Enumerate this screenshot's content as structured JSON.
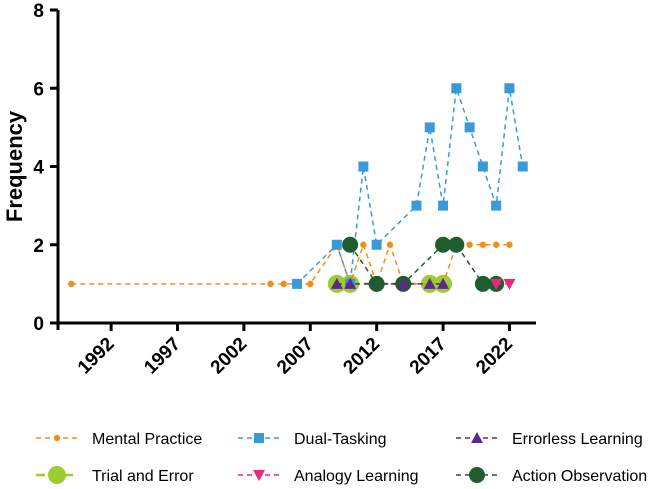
{
  "chart_data": {
    "type": "line",
    "title": "",
    "xlabel": "",
    "ylabel": "Frequency",
    "xlim": [
      1988,
      2024
    ],
    "ylim": [
      0,
      8
    ],
    "x_ticks": [
      1992,
      1997,
      2002,
      2007,
      2012,
      2017,
      2022
    ],
    "y_ticks": [
      0,
      2,
      4,
      6,
      8
    ],
    "grid": false,
    "legend_position": "bottom",
    "series": [
      {
        "name": "Mental Practice",
        "color": "#f28e1c",
        "marker": "small-circle",
        "x": [
          1989,
          2004,
          2005,
          2006,
          2007,
          2009,
          2010,
          2011,
          2012,
          2013,
          2014,
          2016,
          2017,
          2018,
          2019,
          2020,
          2021,
          2022
        ],
        "y": [
          1,
          1,
          1,
          1,
          1,
          2,
          1,
          2,
          1,
          2,
          1,
          1,
          1,
          2,
          2,
          2,
          2,
          2
        ]
      },
      {
        "name": "Dual-Tasking",
        "color": "#3a9ad9",
        "marker": "square",
        "x": [
          2006,
          2009,
          2010,
          2011,
          2012,
          2015,
          2016,
          2017,
          2018,
          2019,
          2020,
          2021,
          2022,
          2023
        ],
        "y": [
          1,
          2,
          1,
          4,
          2,
          3,
          5,
          3,
          6,
          5,
          4,
          3,
          6,
          4
        ]
      },
      {
        "name": "Errorless Learning",
        "color": "#5b2a86",
        "marker": "triangle-up",
        "x": [
          2009,
          2010,
          2014,
          2016,
          2017
        ],
        "y": [
          1,
          1,
          1,
          1,
          1
        ]
      },
      {
        "name": "Trial and Error",
        "color": "#9acd32",
        "marker": "large-circle",
        "x": [
          2009,
          2010,
          2016,
          2017
        ],
        "y": [
          1,
          1,
          1,
          1
        ]
      },
      {
        "name": "Analogy Learning",
        "color": "#e8287a",
        "marker": "triangle-down",
        "x": [
          2021,
          2022
        ],
        "y": [
          1,
          1
        ]
      },
      {
        "name": "Action Observation",
        "color": "#1f5c2e",
        "marker": "dark-circle",
        "x": [
          2010,
          2012,
          2014,
          2017,
          2018,
          2020,
          2021
        ],
        "y": [
          2,
          1,
          1,
          2,
          2,
          1,
          1
        ]
      }
    ]
  }
}
